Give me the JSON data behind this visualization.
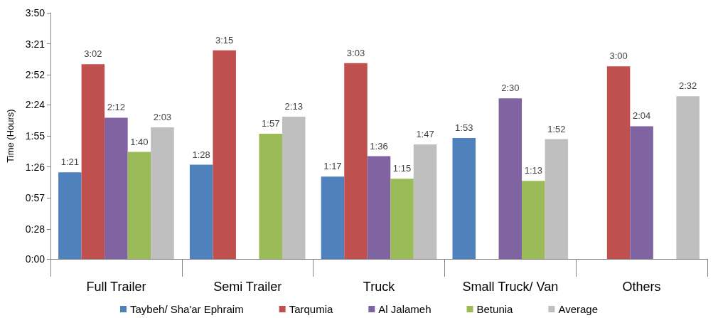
{
  "chart_data": {
    "type": "bar",
    "ylabel": "Time (Hours)",
    "categories": [
      "Full Trailer",
      "Semi Trailer",
      "Truck",
      "Small Truck/ Van",
      "Others"
    ],
    "series": [
      {
        "name": "Taybeh/ Sha'ar Ephraim",
        "color": "#4f81bd",
        "values": [
          81,
          88,
          77,
          113,
          null
        ],
        "value_labels": [
          "1:21",
          "1:28",
          "1:17",
          "1:53",
          null
        ]
      },
      {
        "name": "Tarqumia",
        "color": "#c0504d",
        "values": [
          182,
          195,
          183,
          null,
          180
        ],
        "value_labels": [
          "3:02",
          "3:15",
          "3:03",
          null,
          "3:00"
        ]
      },
      {
        "name": "Al Jalameh",
        "color": "#8064a2",
        "values": [
          132,
          null,
          96,
          150,
          124
        ],
        "value_labels": [
          "2:12",
          null,
          "1:36",
          "2:30",
          "2:04"
        ]
      },
      {
        "name": "Betunia",
        "color": "#9bbb59",
        "values": [
          100,
          117,
          75,
          73,
          null
        ],
        "value_labels": [
          "1:40",
          "1:57",
          "1:15",
          "1:13",
          null
        ]
      },
      {
        "name": "Average",
        "color": "#bfbfbf",
        "values": [
          123,
          133,
          107,
          112,
          152
        ],
        "value_labels": [
          "2:03",
          "2:13",
          "1:47",
          "1:52",
          "2:32"
        ]
      }
    ],
    "ylim": [
      0,
      230
    ],
    "yticks": [
      {
        "value": 0,
        "label": "0:00"
      },
      {
        "value": 28,
        "label": "0:28"
      },
      {
        "value": 57,
        "label": "0:57"
      },
      {
        "value": 86,
        "label": "1:26"
      },
      {
        "value": 115,
        "label": "1:55"
      },
      {
        "value": 144,
        "label": "2:24"
      },
      {
        "value": 172,
        "label": "2:52"
      },
      {
        "value": 201,
        "label": "3:21"
      },
      {
        "value": 230,
        "label": "3:50"
      }
    ],
    "grid": false,
    "legend": "bottom"
  }
}
